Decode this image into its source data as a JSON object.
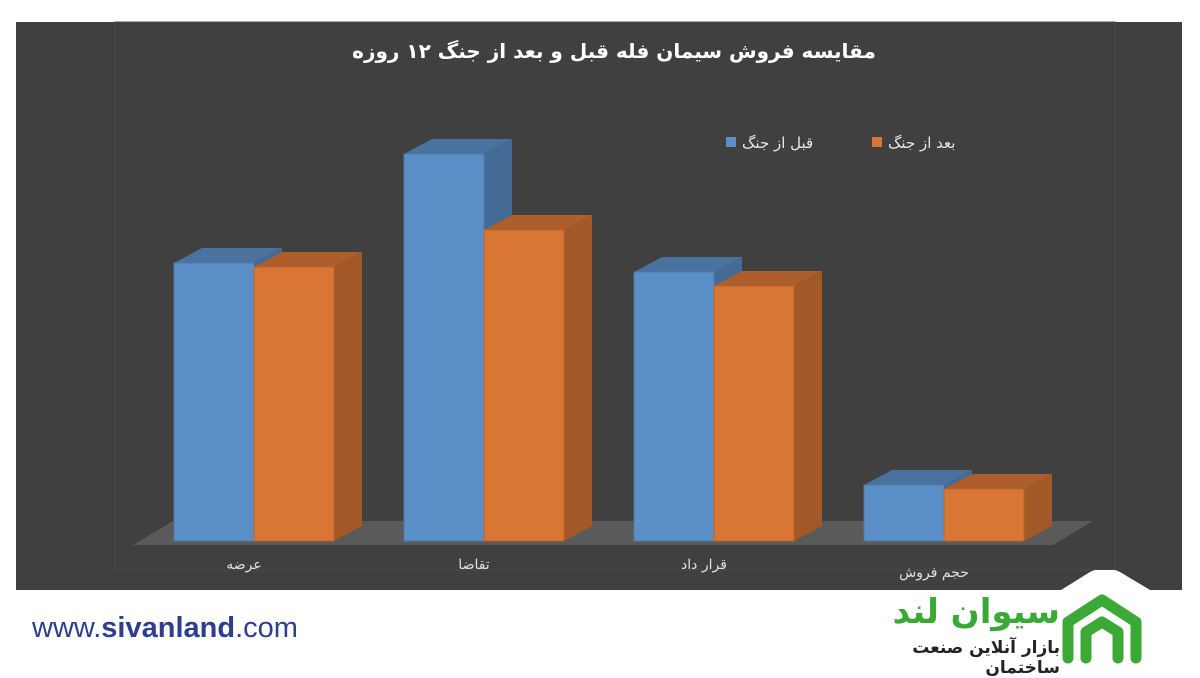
{
  "chart_data": {
    "type": "bar",
    "style": "3d-clustered",
    "title": "مقایسه فروش سیمان فله قبل و بعد از جنگ ۱۲ روزه",
    "categories": [
      "عرضه",
      "تقاضا",
      "قرار داد",
      "حجم فروش"
    ],
    "series": [
      {
        "name": "قبل از جنگ",
        "color": "#5b8fc7",
        "values": [
          278,
          387,
          269,
          56
        ]
      },
      {
        "name": "بعد از جنگ",
        "color": "#d97634",
        "values": [
          274,
          311,
          255,
          52
        ]
      }
    ],
    "legend": "top-right",
    "grid": false,
    "background": "#404040"
  },
  "footer": {
    "url_prefix": "www.",
    "url_brand": "sivanland",
    "url_suffix": ".com"
  },
  "logo": {
    "title": "سیوان لند",
    "subtitle": "بازار آنلاین صنعت ساختمان",
    "color": "#3aa935"
  }
}
